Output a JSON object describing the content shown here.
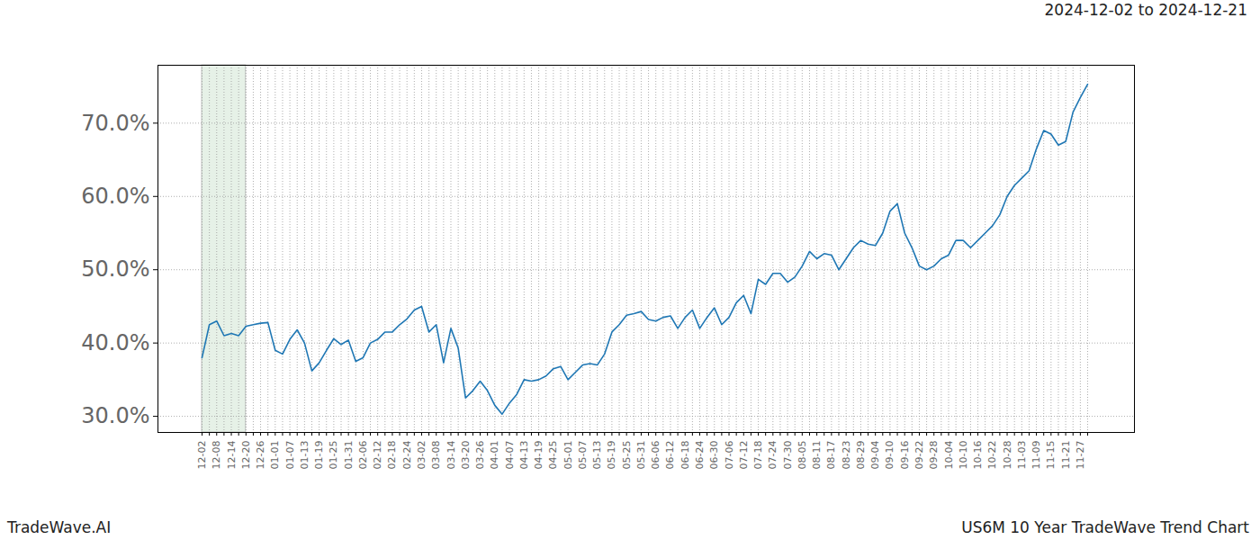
{
  "chart_data": {
    "type": "line",
    "title": "2024-12-02 to 2024-12-21",
    "annotations": [
      "TradeWave.AI",
      "US6M 10 Year TradeWave Trend Chart"
    ],
    "highlight": {
      "start": "12-02",
      "end": "12-20"
    },
    "categories": [
      "12-02",
      null,
      "12-08",
      null,
      "12-14",
      null,
      "12-20",
      null,
      "12-26",
      null,
      "01-01",
      null,
      "01-07",
      null,
      "01-13",
      null,
      "01-19",
      null,
      "01-25",
      null,
      "01-31",
      null,
      "02-06",
      null,
      "02-12",
      null,
      "02-18",
      null,
      "02-24",
      null,
      "03-02",
      null,
      "03-08",
      null,
      "03-14",
      null,
      "03-20",
      null,
      "03-26",
      null,
      "04-01",
      null,
      "04-07",
      null,
      "04-13",
      null,
      "04-19",
      null,
      "04-25",
      null,
      "05-01",
      null,
      "05-07",
      null,
      "05-13",
      null,
      "05-19",
      null,
      "05-25",
      null,
      "05-31",
      null,
      "06-06",
      null,
      "06-12",
      null,
      "06-18",
      null,
      "06-24",
      null,
      "06-30",
      null,
      "07-06",
      null,
      "07-12",
      null,
      "07-18",
      null,
      "07-24",
      null,
      "07-30",
      null,
      "08-05",
      null,
      "08-11",
      null,
      "08-17",
      null,
      "08-23",
      null,
      "08-29",
      null,
      "09-04",
      null,
      "09-10",
      null,
      "09-16",
      null,
      "09-22",
      null,
      "09-28",
      null,
      "10-04",
      null,
      "10-10",
      null,
      "10-16",
      null,
      "10-22",
      null,
      "10-28",
      null,
      "11-03",
      null,
      "11-09",
      null,
      "11-15",
      null,
      "11-21",
      null,
      "11-27",
      null
    ],
    "series": [
      {
        "name": "US6M",
        "color": "#1f77b4",
        "values": [
          38,
          42.5,
          43,
          41,
          41.3,
          41,
          42.3,
          42.5,
          42.7,
          42.8,
          39,
          38.5,
          40.5,
          41.8,
          40,
          36.2,
          37.3,
          39,
          40.6,
          39.8,
          40.4,
          37.5,
          38,
          40,
          40.5,
          41.5,
          41.5,
          42.5,
          43.3,
          44.5,
          45,
          41.5,
          42.5,
          37.3,
          42,
          39.3,
          32.5,
          33.5,
          34.8,
          33.5,
          31.5,
          30.3,
          31.8,
          33,
          35,
          34.8,
          35,
          35.5,
          36.5,
          36.8,
          35,
          36,
          37,
          37.2,
          37,
          38.5,
          41.5,
          42.5,
          43.8,
          44,
          44.3,
          43.2,
          43,
          43.5,
          43.7,
          42,
          43.5,
          44.5,
          42,
          43.5,
          44.8,
          42.5,
          43.5,
          45.5,
          46.5,
          44,
          48.7,
          48,
          49.5,
          49.5,
          48.3,
          49,
          50.5,
          52.5,
          51.5,
          52.2,
          52,
          50,
          51.5,
          53,
          54,
          53.5,
          53.3,
          55,
          58,
          59,
          55,
          53,
          50.5,
          50,
          50.5,
          51.5,
          52,
          54,
          54,
          53,
          54,
          55,
          56,
          57.5,
          60,
          61.5,
          62.5,
          63.5,
          66.5,
          69,
          68.5,
          67,
          67.5,
          71.5,
          73.5,
          75.3
        ]
      }
    ],
    "ylim": [
      27.8,
      77.9
    ],
    "yticks": [
      {
        "value": 30,
        "label": "30.0%"
      },
      {
        "value": 40,
        "label": "40.0%"
      },
      {
        "value": 50,
        "label": "50.0%"
      },
      {
        "value": 60,
        "label": "60.0%"
      },
      {
        "value": 70,
        "label": "70.0%"
      }
    ],
    "grid": true
  }
}
